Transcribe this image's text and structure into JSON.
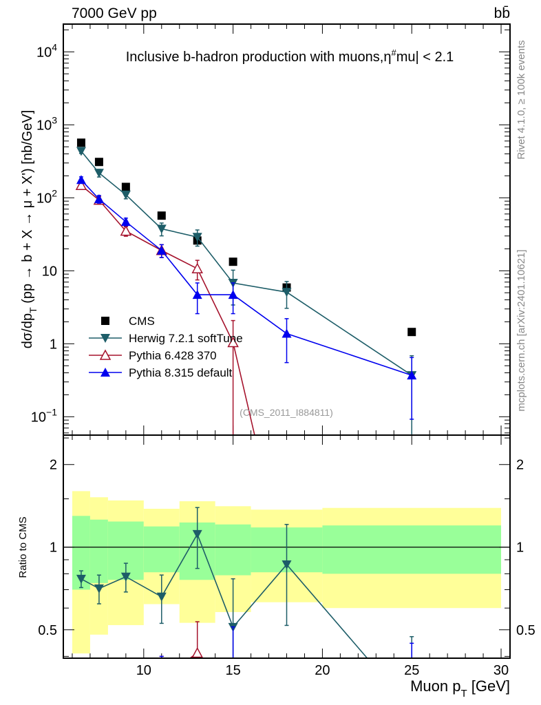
{
  "header": {
    "left": "7000 GeV pp",
    "right": "bb̄"
  },
  "side_labels": {
    "rivet": "Rivet 4.1.0, ≥ 100k events",
    "mcplots": "mcplots.cern.ch [arXiv:2401.10621]"
  },
  "analysis_id": "(CMS_2011_I884811)",
  "colors": {
    "cms": "#000000",
    "herwig": "#1d5d68",
    "pythia6": "#a5122c",
    "pythia8": "#0000ee",
    "band_outer": "#ffff99",
    "band_inner": "#99ff99"
  },
  "chart_data": [
    {
      "type": "scatter",
      "title": "Inclusive b-hadron production with muons, |η^mu| < 2.1",
      "title_parts": {
        "main": "Inclusive b-hadron production with muons,",
        "eta": "η",
        "sup": "#",
        "rest": "mu| < 2.1"
      },
      "ylabel": "dσ/dp_T (pp → b + X → μ + X') [nb/GeV]",
      "ylabel_parts": {
        "a": "dσ/dp",
        "sub": "T",
        "b": " (pp → b + X → μ + X') [nb/GeV]"
      },
      "yscale": "log",
      "ylim": [
        0.056,
        24000
      ],
      "xlim": [
        5.5,
        30.5
      ],
      "ytick_labels": [
        {
          "v": 0.1,
          "base": "10",
          "exp": "−1"
        },
        {
          "v": 1,
          "base": "1",
          "exp": ""
        },
        {
          "v": 10,
          "base": "10",
          "exp": ""
        },
        {
          "v": 100,
          "base": "10",
          "exp": "2"
        },
        {
          "v": 1000,
          "base": "10",
          "exp": "3"
        },
        {
          "v": 10000,
          "base": "10",
          "exp": "4"
        }
      ],
      "legend_position": "center-left",
      "x": [
        6.5,
        7.5,
        9,
        11,
        13,
        15,
        18,
        25
      ],
      "series": [
        {
          "name": "CMS",
          "key": "cms",
          "marker": "square",
          "values": [
            569,
            310,
            141,
            57,
            26,
            13.3,
            5.9,
            1.45
          ]
        },
        {
          "name": "Herwig 7.2.1 softTune",
          "key": "herwig",
          "marker": "triangle-down",
          "values": [
            436,
            219,
            110,
            37.6,
            29,
            6.8,
            5.1,
            0.37
          ],
          "rel_err": [
            0.07,
            0.12,
            0.12,
            0.2,
            0.25,
            0.5,
            0.4,
            0.85
          ]
        },
        {
          "name": "Pythia 6.428 370",
          "key": "pythia6",
          "marker": "triangle-open",
          "values": [
            148,
            93,
            35,
            19,
            10.7,
            1.04,
            0.0,
            null
          ],
          "rel_err": [
            0.1,
            0.12,
            0.15,
            0.2,
            0.3,
            1.0,
            0,
            0
          ]
        },
        {
          "name": "Pythia 8.315 default",
          "key": "pythia8",
          "marker": "triangle-up",
          "values": [
            176,
            96,
            47,
            19,
            4.7,
            4.7,
            1.38,
            0.37
          ],
          "rel_err": [
            0.1,
            0.12,
            0.12,
            0.2,
            0.45,
            0.45,
            0.6,
            0.75
          ]
        }
      ]
    },
    {
      "type": "scatter",
      "ylabel": "Ratio to CMS",
      "xlabel": "Muon p_T [GeV]",
      "xlabel_parts": {
        "a": "Muon p",
        "sub": "T",
        "b": " [GeV]"
      },
      "yscale": "log",
      "ylim": [
        0.394,
        2.56
      ],
      "xlim": [
        5.5,
        30.5
      ],
      "xtick_labels": [
        "10",
        "15",
        "20",
        "25",
        "30"
      ],
      "ytick_labels": [
        "0.5",
        "1",
        "2"
      ],
      "bins": [
        [
          6,
          7
        ],
        [
          7,
          8
        ],
        [
          8,
          10
        ],
        [
          10,
          12
        ],
        [
          12,
          14
        ],
        [
          14,
          16
        ],
        [
          16,
          20
        ],
        [
          20,
          30
        ]
      ],
      "band_inner": [
        [
          0.7,
          1.3
        ],
        [
          0.74,
          1.26
        ],
        [
          0.76,
          1.24
        ],
        [
          0.81,
          1.19
        ],
        [
          0.76,
          1.23
        ],
        [
          0.79,
          1.21
        ],
        [
          0.81,
          1.18
        ],
        [
          0.8,
          1.2
        ]
      ],
      "band_outer": [
        [
          0.41,
          1.6
        ],
        [
          0.48,
          1.52
        ],
        [
          0.52,
          1.48
        ],
        [
          0.62,
          1.38
        ],
        [
          0.53,
          1.47
        ],
        [
          0.58,
          1.41
        ],
        [
          0.63,
          1.37
        ],
        [
          0.6,
          1.39
        ]
      ]
    }
  ]
}
